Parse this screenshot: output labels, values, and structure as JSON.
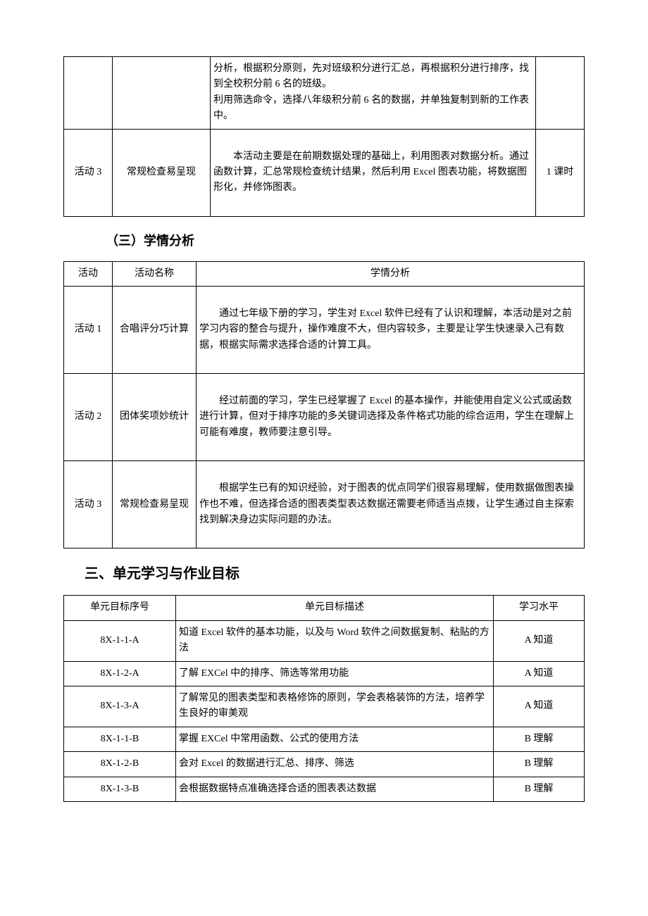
{
  "table1": {
    "rows": [
      {
        "c1": "",
        "c2": "",
        "c3_p1": "分析，根据积分原则，先对班级积分进行汇总，再根据积分进行排序，找到全校积分前 6 名的班级。",
        "c3_p2": "利用筛选命令，选择八年级积分前 6 名的数据，并单独复制到新的工作表中。",
        "c4": ""
      },
      {
        "c1": "活动 3",
        "c2": "常规检查易呈现",
        "c3_p1": "本活动主要是在前期数据处理的基础上，利用图表对数据分析。通过函数计算，汇总常规检查统计结果，然后利用 Excel 图表功能，将数据图形化，并修饰图表。",
        "c4": "1 课时"
      }
    ]
  },
  "heading_3": "（三）学情分析",
  "table2": {
    "header": {
      "c1": "活动",
      "c2": "活动名称",
      "c3": "学情分析"
    },
    "rows": [
      {
        "c1": "活动 1",
        "c2": "合唱评分巧计算",
        "c3": "通过七年级下册的学习，学生对 Excel 软件已经有了认识和理解，本活动是对之前学习内容的整合与提升，操作难度不大，但内容较多，主要是让学生快速录入己有数据，根据实际需求选择合适的计算工具。"
      },
      {
        "c1": "活动 2",
        "c2": "团体奖项妙统计",
        "c3": "经过前面的学习，学生已经掌握了 Excel 的基本操作，并能使用自定义公式或函数进行计算，但对于排序功能的多关键词选择及条件格式功能的综合运用，学生在理解上可能有难度，教师要注意引导。"
      },
      {
        "c1": "活动 3",
        "c2": "常规检查易呈现",
        "c3": "根据学生已有的知识经验，对于图表的优点同学们很容易理解，使用数据做图表操作也不难，但选择合适的图表类型表达数据还需要老师适当点拨，让学生通过自主探索找到解决身边实际问题的办法。"
      }
    ]
  },
  "heading_main": "三、单元学习与作业目标",
  "table3": {
    "header": {
      "c1": "单元目标序号",
      "c2": "单元目标描述",
      "c3": "学习水平"
    },
    "rows": [
      {
        "c1": "8X-1-1-A",
        "c2": "知道 Excel 软件的基本功能，以及与 Word 软件之间数据复制、粘贴的方法",
        "c3": "A 知道"
      },
      {
        "c1": "8X-1-2-A",
        "c2": "了解 EXCel 中的排序、筛选等常用功能",
        "c3": "A 知道"
      },
      {
        "c1": "8X-1-3-A",
        "c2": "了解常见的图表类型和表格修饰的原则，学会表格装饰的方法，培养学生良好的审美观",
        "c3": "A 知道"
      },
      {
        "c1": "8X-1-1-B",
        "c2": "掌握 EXCel 中常用函数、公式的使用方法",
        "c3": "B 理解"
      },
      {
        "c1": "8X-1-2-B",
        "c2": "会对 Excel 的数据进行汇总、排序、筛选",
        "c3": "B 理解"
      },
      {
        "c1": "8X-1-3-B",
        "c2": "会根据数据特点准确选择合适的图表表达数据",
        "c3": "B 理解"
      }
    ]
  }
}
